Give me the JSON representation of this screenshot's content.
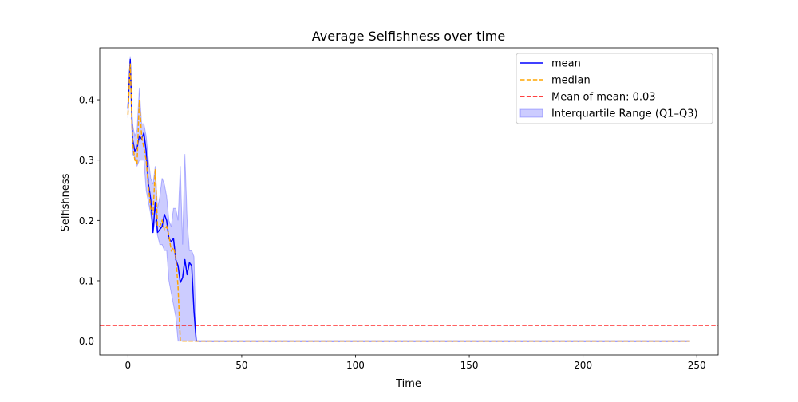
{
  "chart_data": {
    "type": "line",
    "title": "Average Selfishness over time",
    "xlabel": "Time",
    "ylabel": "Selfishness",
    "xlim": [
      -12.4,
      259.4
    ],
    "ylim": [
      -0.023,
      0.486
    ],
    "xticks": [
      0,
      50,
      100,
      150,
      200,
      250
    ],
    "xtick_labels": [
      "0",
      "50",
      "100",
      "150",
      "200",
      "250"
    ],
    "yticks": [
      0.0,
      0.1,
      0.2,
      0.3,
      0.4
    ],
    "ytick_labels": [
      "0.0",
      "0.1",
      "0.2",
      "0.3",
      "0.4"
    ],
    "grid": false,
    "legend_position": "top-right",
    "colors": {
      "mean": "#0000ff",
      "median": "#ffa500",
      "mean_of_mean": "#ff0000",
      "iqr_fill": "#0000ff"
    },
    "series": [
      {
        "name": "mean",
        "style": "solid",
        "x": [
          0,
          1,
          2,
          3,
          4,
          5,
          6,
          7,
          8,
          9,
          10,
          11,
          12,
          13,
          14,
          15,
          16,
          17,
          18,
          19,
          20,
          21,
          22,
          23,
          24,
          25,
          26,
          27,
          28,
          29,
          30,
          31,
          247
        ],
        "values": [
          0.385,
          0.467,
          0.335,
          0.315,
          0.32,
          0.34,
          0.335,
          0.345,
          0.315,
          0.26,
          0.235,
          0.18,
          0.23,
          0.18,
          0.185,
          0.19,
          0.21,
          0.2,
          0.17,
          0.165,
          0.17,
          0.135,
          0.125,
          0.097,
          0.105,
          0.135,
          0.11,
          0.13,
          0.125,
          0.05,
          0.0,
          0.0,
          0.0
        ]
      },
      {
        "name": "median",
        "style": "dashed",
        "x": [
          0,
          1,
          2,
          3,
          4,
          5,
          6,
          7,
          8,
          9,
          10,
          11,
          12,
          13,
          14,
          15,
          16,
          17,
          18,
          19,
          20,
          21,
          22,
          23,
          24,
          25,
          26,
          247
        ],
        "values": [
          0.375,
          0.46,
          0.33,
          0.3,
          0.295,
          0.4,
          0.34,
          0.32,
          0.3,
          0.255,
          0.22,
          0.21,
          0.285,
          0.19,
          0.19,
          0.2,
          0.185,
          0.19,
          0.175,
          0.15,
          0.155,
          0.14,
          0.09,
          0.0,
          0.0,
          0.0,
          0.0,
          0.0
        ]
      },
      {
        "name": "Interquartile Range (Q1–Q3)",
        "style": "fill",
        "x": [
          0,
          1,
          2,
          3,
          4,
          5,
          6,
          7,
          8,
          9,
          10,
          11,
          12,
          13,
          14,
          15,
          16,
          17,
          18,
          19,
          20,
          21,
          22,
          23,
          24,
          25,
          26,
          27,
          28,
          29,
          30,
          247
        ],
        "q1": [
          0.37,
          0.445,
          0.31,
          0.305,
          0.29,
          0.3,
          0.3,
          0.3,
          0.25,
          0.23,
          0.21,
          0.18,
          0.2,
          0.175,
          0.16,
          0.16,
          0.15,
          0.15,
          0.1,
          0.08,
          0.06,
          0.04,
          0.0,
          0.0,
          0.0,
          0.0,
          0.0,
          0.0,
          0.0,
          0.0,
          0.0,
          0.0
        ],
        "q3": [
          0.4,
          0.472,
          0.36,
          0.34,
          0.35,
          0.42,
          0.36,
          0.36,
          0.34,
          0.3,
          0.27,
          0.26,
          0.29,
          0.22,
          0.24,
          0.27,
          0.26,
          0.24,
          0.2,
          0.19,
          0.22,
          0.22,
          0.2,
          0.29,
          0.16,
          0.31,
          0.2,
          0.15,
          0.15,
          0.14,
          0.0,
          0.0
        ]
      }
    ],
    "reference_line": {
      "name": "Mean of mean: 0.03",
      "y": 0.026,
      "style": "dashed"
    },
    "legend": [
      {
        "label": "mean",
        "kind": "line-solid",
        "color": "#0000ff"
      },
      {
        "label": "median",
        "kind": "line-dashed",
        "color": "#ffa500"
      },
      {
        "label": "Mean of mean: 0.03",
        "kind": "line-dashed",
        "color": "#ff0000"
      },
      {
        "label": "Interquartile Range (Q1–Q3)",
        "kind": "patch",
        "color": "#0000ff"
      }
    ]
  }
}
